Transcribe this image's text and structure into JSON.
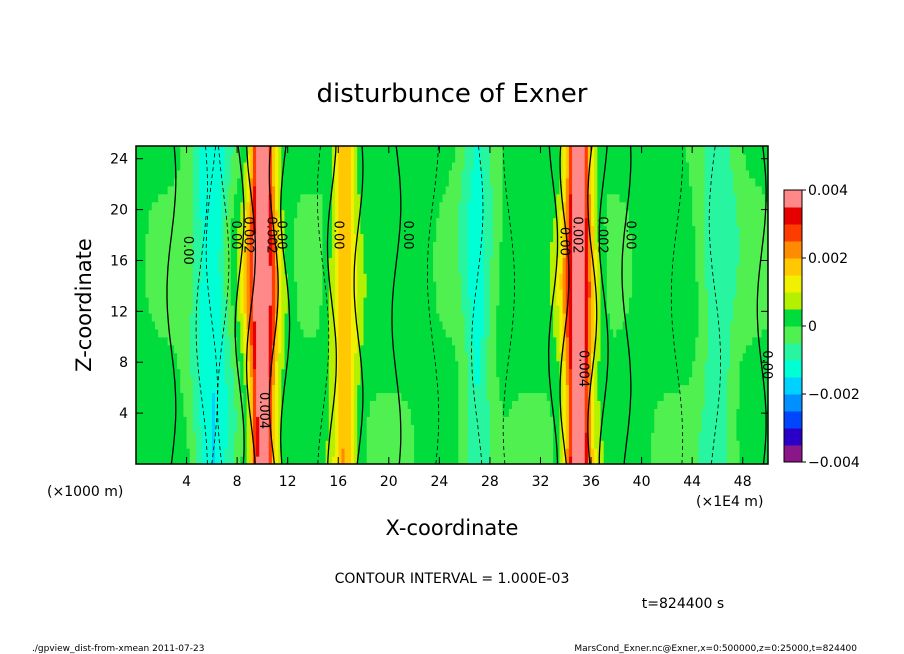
{
  "chart_data": {
    "type": "heatmap",
    "title": "disturbunce of Exner",
    "xlabel": "X-coordinate",
    "ylabel": "Z-coordinate",
    "x_unit_left": "(×1000 m)",
    "x_unit_right": "(×1E4 m)",
    "xlim": [
      0,
      50
    ],
    "ylim": [
      0,
      25
    ],
    "x_ticks": [
      "4",
      "8",
      "12",
      "16",
      "20",
      "24",
      "28",
      "32",
      "36",
      "40",
      "44",
      "48"
    ],
    "y_ticks": [
      "4",
      "8",
      "12",
      "16",
      "20",
      "24"
    ],
    "colorbar": {
      "range": [
        -0.004,
        0.004
      ],
      "tick_labels": [
        "0.004",
        "0.002",
        "0",
        "−0.002",
        "−0.004"
      ],
      "colors": [
        "#8a168a",
        "#2a00c8",
        "#0046ff",
        "#0090ff",
        "#00d2ff",
        "#00ffd4",
        "#28f5a0",
        "#50f050",
        "#00dc3c",
        "#b4f000",
        "#f0f000",
        "#ffc800",
        "#ff8c00",
        "#ff3c00",
        "#e60000",
        "#ff8888"
      ]
    },
    "peaks": [
      {
        "x": 10,
        "amplitude": 0.0042,
        "width": 1.1,
        "label": "0.004"
      },
      {
        "x": 35,
        "amplitude": 0.0042,
        "width": 1.1,
        "label": "0.004"
      },
      {
        "x": 16.5,
        "amplitude": 0.0018,
        "width": 1.0
      },
      {
        "x": 6,
        "amplitude": -0.0016,
        "width": 1.5
      },
      {
        "x": 27,
        "amplitude": -0.0012,
        "width": 1.2
      },
      {
        "x": 46,
        "amplitude": -0.001,
        "width": 1.5
      }
    ],
    "contour_labels": [
      "0.00",
      "0.00",
      "0.002",
      "0.002",
      "0.00",
      "0.00",
      "0.00",
      "0.00",
      "0.002",
      "0.002",
      "0.00",
      "0.00",
      "0.004",
      "0.004"
    ],
    "contour_interval_text": "CONTOUR INTERVAL = 1.000E-03",
    "time_text": "t=824400 s",
    "grid": false
  },
  "footer": {
    "left": "./gpview_dist-from-xmean  2011-07-23",
    "right": "MarsCond_Exner.nc@Exner,x=0:500000,z=0:25000,t=824400"
  }
}
